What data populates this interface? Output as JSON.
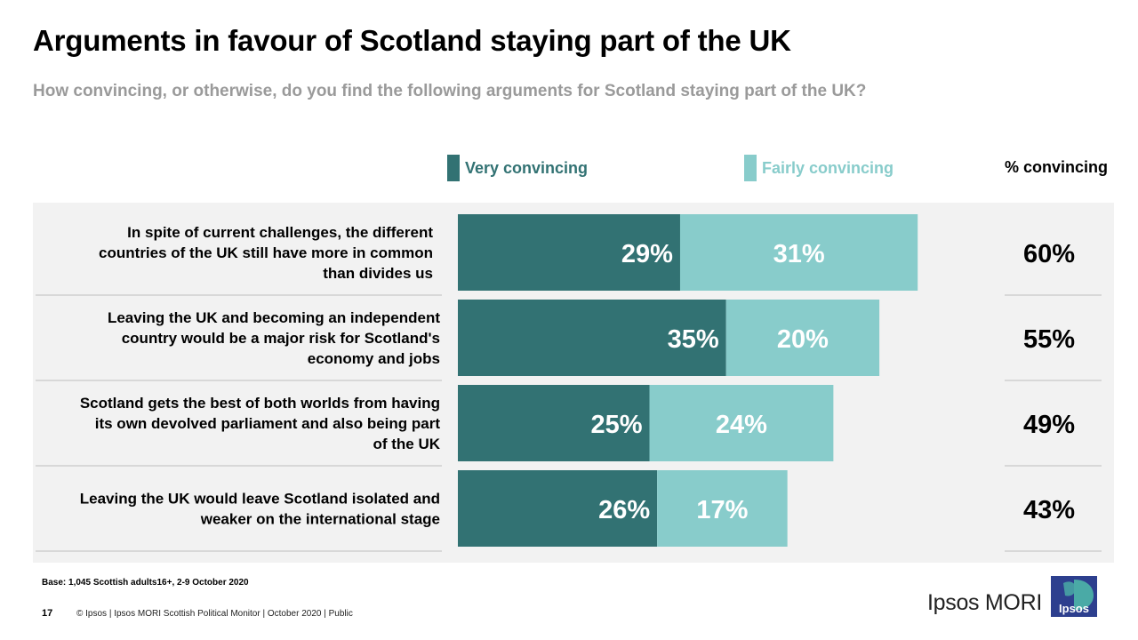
{
  "header": {
    "title": "Arguments in favour of Scotland staying part of the UK",
    "subtitle": "How convincing, or otherwise, do you find the following arguments for Scotland staying part of the UK?"
  },
  "colors": {
    "very": "#327273",
    "fairly": "#88cccb",
    "panel": "#f2f2f2",
    "divider": "#bfbfbf",
    "logo_blue": "#2d3f8e",
    "logo_teal": "#4aaaa6"
  },
  "legend": {
    "very_label": "Very convincing",
    "fairly_label": "Fairly convincing",
    "total_header": "% convincing"
  },
  "chart_data": {
    "type": "bar",
    "orientation": "horizontal",
    "stacked": true,
    "title": "Arguments in favour of Scotland staying part of the UK",
    "categories": [
      "In spite of current challenges, the different countries of the UK still have more in common than divides us",
      "Leaving the UK and becoming an independent country would be a major risk for Scotland's economy and jobs",
      "Scotland gets the best of both worlds from having its own devolved parliament and also being part of the UK",
      "Leaving the UK would leave Scotland isolated and weaker on the international stage"
    ],
    "category_lines": [
      [
        "In spite of current challenges, the different",
        "countries of the UK still have more in common",
        "than divides us"
      ],
      [
        "Leaving the UK and becoming an independent",
        "country would be a major risk for Scotland's",
        "economy and jobs"
      ],
      [
        "Scotland gets the best of both worlds from having",
        "its own devolved parliament and also being part",
        "of the UK"
      ],
      [
        "Leaving the UK would leave Scotland isolated and",
        "weaker on the international stage"
      ]
    ],
    "series": [
      {
        "name": "Very convincing",
        "values": [
          29,
          35,
          25,
          26
        ]
      },
      {
        "name": "Fairly convincing",
        "values": [
          31,
          20,
          24,
          17
        ]
      }
    ],
    "totals": [
      60,
      55,
      49,
      43
    ],
    "value_suffix": "%",
    "legend_position": "top",
    "grid": false
  },
  "footer": {
    "base_note": "Base: 1,045 Scottish adults16+, 2-9 October 2020",
    "page_number": "17",
    "text": "© Ipsos | Ipsos MORI  Scottish Political Monitor | October 2020 | Public",
    "brand": "Ipsos MORI",
    "logo_text": "Ipsos"
  }
}
